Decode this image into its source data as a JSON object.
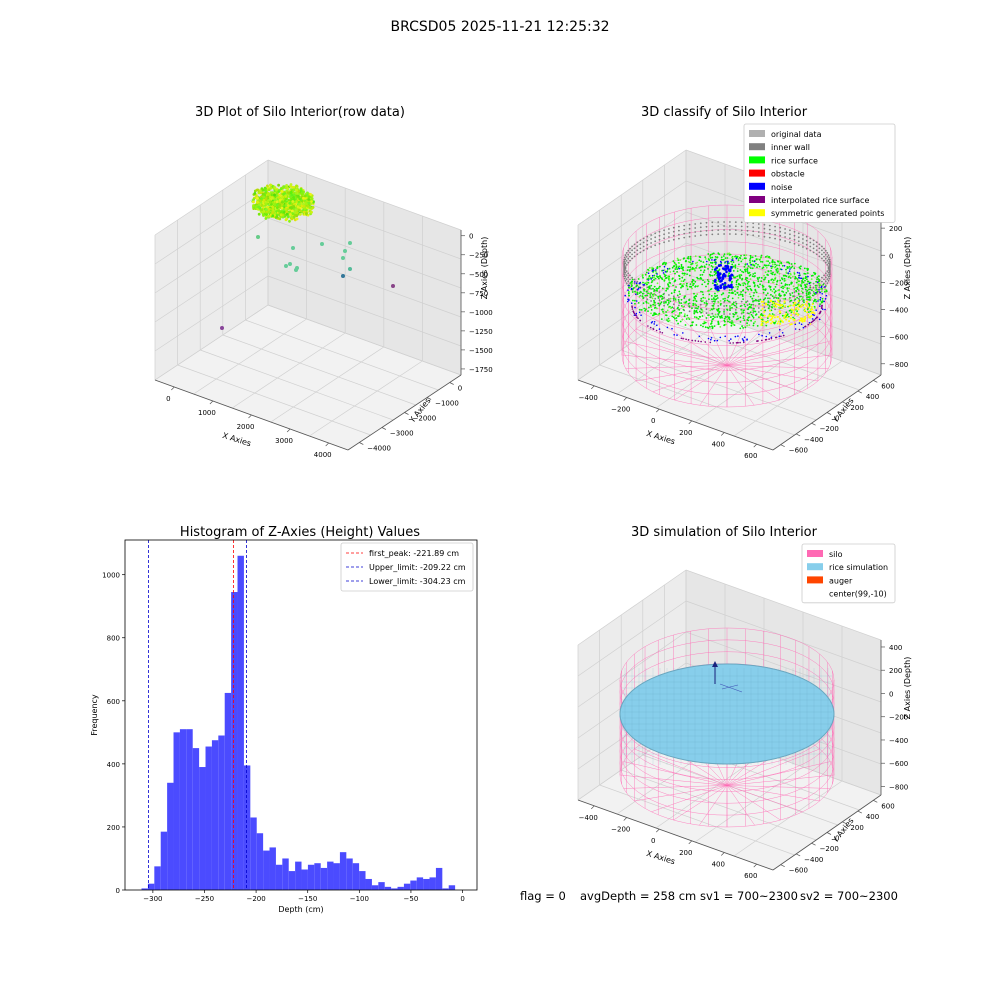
{
  "figure": {
    "suptitle": "BRCSD05 2025-11-21 12:25:32",
    "status": {
      "flag": "flag = 0",
      "avg_depth": "avgDepth = 258 cm",
      "sv1": "sv1 = 700~2300",
      "sv2": "sv2 = 700~2300"
    }
  },
  "chart_data": [
    {
      "type": "scatter",
      "title": "3D Plot of Silo Interior(row data)",
      "xlabel": "X Axies",
      "ylabel": "Y Axies",
      "zlabel": "Z Axies (Depth)",
      "x_ticks": [
        "0",
        "1000",
        "2000",
        "3000",
        "4000"
      ],
      "y_ticks": [
        "−4000",
        "−3000",
        "−2000",
        "−1000",
        "0"
      ],
      "z_ticks": [
        "0",
        "−250",
        "−500",
        "−750",
        "−1000",
        "−1250",
        "−1500",
        "−1750"
      ],
      "xlim": [
        -500,
        4100
      ],
      "ylim": [
        -4200,
        500
      ],
      "zlim": [
        -1900,
        100
      ],
      "cluster": {
        "x_range": [
          -600,
          600
        ],
        "y_range": [
          -600,
          600
        ],
        "z_range": [
          -300,
          -150
        ],
        "color": "#b3e000"
      },
      "outliers": [
        {
          "x": 300,
          "y": -300,
          "z": -550,
          "color": "#66cc88"
        },
        {
          "x": 900,
          "y": -200,
          "z": -600,
          "color": "#66cc99"
        },
        {
          "x": 1800,
          "y": -100,
          "z": -500,
          "color": "#66cc99"
        },
        {
          "x": 2400,
          "y": -300,
          "z": -560,
          "color": "#66cc99"
        },
        {
          "x": 2500,
          "y": -600,
          "z": -570,
          "color": "#66cc99"
        },
        {
          "x": 2600,
          "y": -800,
          "z": -700,
          "color": "#66cc99"
        },
        {
          "x": 2300,
          "y": -900,
          "z": -820,
          "color": "#66cc99"
        },
        {
          "x": 1200,
          "y": -800,
          "z": -780,
          "color": "#66cc99"
        },
        {
          "x": 1300,
          "y": -900,
          "z": -820,
          "color": "#66cc99"
        },
        {
          "x": 1400,
          "y": -850,
          "z": -800,
          "color": "#66cc99"
        },
        {
          "x": 3400,
          "y": -1500,
          "z": -1200,
          "color": "#55bb99"
        },
        {
          "x": 1200,
          "y": -3000,
          "z": -1650,
          "color": "#337799"
        },
        {
          "x": 3600,
          "y": -2500,
          "z": -1850,
          "color": "#884488"
        },
        {
          "x": 3900,
          "y": -3100,
          "z": -1850,
          "color": "#884499"
        }
      ]
    },
    {
      "type": "scatter",
      "title": "3D classify of Silo Interior",
      "xlabel": "X Axies",
      "ylabel": "Y Axies",
      "zlabel": "Z Axies (Depth)",
      "x_ticks": [
        "−400",
        "−200",
        "0",
        "200",
        "400",
        "600"
      ],
      "y_ticks": [
        "−600",
        "−400",
        "−200",
        "0",
        "200",
        "400",
        "600"
      ],
      "z_ticks": [
        "200",
        "0",
        "−200",
        "−400",
        "−600",
        "−800"
      ],
      "xlim": [
        -520,
        720
      ],
      "ylim": [
        -680,
        680
      ],
      "zlim": [
        -900,
        480
      ],
      "legend_position": "upper right",
      "legend": [
        {
          "label": "original data",
          "color": "#b0b0b0"
        },
        {
          "label": "inner wall",
          "color": "#808080"
        },
        {
          "label": "rice surface",
          "color": "#00ff00"
        },
        {
          "label": "obstacle",
          "color": "#ff0000"
        },
        {
          "label": "noise",
          "color": "#0000ff"
        },
        {
          "label": "interpolated rice surface",
          "color": "#800080"
        },
        {
          "label": "symmetric generated points",
          "color": "#ffff00"
        }
      ],
      "silo": {
        "center": [
          99,
          -10
        ],
        "radius": 600,
        "z_bottom": -900,
        "z_top": 0,
        "color": "#ff69b4"
      },
      "rice_surface_z": -220
    },
    {
      "type": "bar",
      "title": "Histogram of Z-Axies (Height) Values",
      "xlabel": "Depth (cm)",
      "ylabel": "Frequency",
      "bar_color": "#4b4bff",
      "xlim": [
        -327,
        14
      ],
      "ylim": [
        0,
        1110
      ],
      "x_ticks": [
        {
          "value": -300,
          "label": "−300"
        },
        {
          "value": -250,
          "label": "−250"
        },
        {
          "value": -200,
          "label": "−200"
        },
        {
          "value": -150,
          "label": "−150"
        },
        {
          "value": -100,
          "label": "−100"
        },
        {
          "value": -50,
          "label": "−50"
        },
        {
          "value": 0,
          "label": "0"
        }
      ],
      "y_ticks": [
        {
          "value": 0,
          "label": "0"
        },
        {
          "value": 200,
          "label": "200"
        },
        {
          "value": 400,
          "label": "400"
        },
        {
          "value": 600,
          "label": "600"
        },
        {
          "value": 800,
          "label": "800"
        },
        {
          "value": 1000,
          "label": "1000"
        }
      ],
      "bin_start": -311,
      "bin_width": 6.2,
      "values": [
        5,
        20,
        75,
        185,
        340,
        500,
        510,
        510,
        450,
        390,
        455,
        475,
        490,
        625,
        945,
        1060,
        395,
        230,
        180,
        125,
        135,
        80,
        100,
        60,
        90,
        65,
        80,
        85,
        70,
        90,
        85,
        120,
        100,
        85,
        60,
        35,
        15,
        25,
        10,
        5,
        10,
        20,
        30,
        40,
        35,
        40,
        70,
        5,
        15
      ],
      "lines": [
        {
          "value": -221.89,
          "label": "first_peak: -221.89 cm",
          "color": "#ff0000"
        },
        {
          "value": -209.22,
          "label": "Upper_limit: -209.22 cm",
          "color": "#0000cc"
        },
        {
          "value": -304.23,
          "label": "Lower_limit: -304.23 cm",
          "color": "#0000cc"
        }
      ],
      "legend_position": "upper right"
    },
    {
      "type": "scatter",
      "title": "3D simulation of Silo Interior",
      "xlabel": "X Axies",
      "ylabel": "Y Axies",
      "zlabel": "Z Axies (Depth)",
      "x_ticks": [
        "−400",
        "−200",
        "0",
        "200",
        "400",
        "600"
      ],
      "y_ticks": [
        "−600",
        "−400",
        "−200",
        "0",
        "200",
        "400",
        "600"
      ],
      "z_ticks": [
        "400",
        "200",
        "0",
        "−200",
        "−400",
        "−600",
        "−800"
      ],
      "xlim": [
        -520,
        720
      ],
      "ylim": [
        -680,
        680
      ],
      "zlim": [
        -900,
        480
      ],
      "legend_position": "upper right",
      "legend": [
        {
          "label": "silo",
          "color": "#ff69b4"
        },
        {
          "label": "rice simulation",
          "color": "#87ceeb"
        },
        {
          "label": "auger",
          "color": "#ff4500"
        },
        {
          "label": "center(99,-10)",
          "color": "#ffffff"
        }
      ],
      "silo": {
        "center": [
          99,
          -10
        ],
        "radius": 600,
        "z_bottom": -900,
        "z_top": 0,
        "color": "#ff69b4"
      },
      "rice_surface_z": -258,
      "rice_color": "#87ceeb"
    }
  ]
}
